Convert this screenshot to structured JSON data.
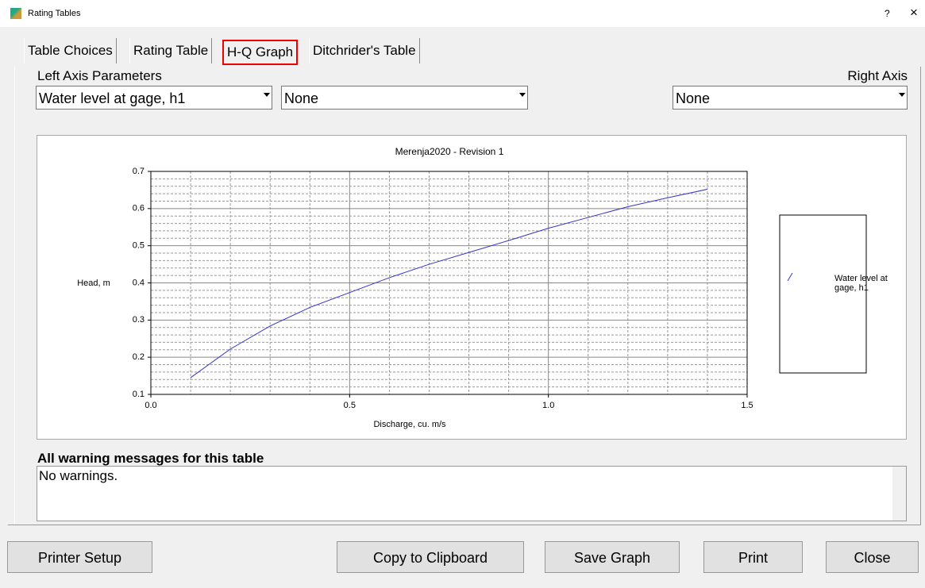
{
  "window": {
    "title": "Rating Tables",
    "help": "?",
    "close": "×"
  },
  "tabs": [
    "Table Choices",
    "Rating Table",
    "H-Q Graph",
    "Ditchrider's Table"
  ],
  "left_axis_label": "Left Axis Parameters",
  "right_axis_label": "Right Axis",
  "dropdowns": [
    "Water level at gage, h1",
    "None",
    "None"
  ],
  "chart_data": {
    "type": "line",
    "title": "Merenja2020 - Revision 1",
    "xlabel": "Discharge, cu. m/s",
    "ylabel": "Head, m",
    "x": [
      0.1,
      0.2,
      0.3,
      0.4,
      0.5,
      0.6,
      0.7,
      0.8,
      0.9,
      1.0,
      1.1,
      1.2,
      1.3,
      1.4
    ],
    "series": [
      {
        "name": "Water level at gage, h1",
        "color": "#3333cc",
        "values": [
          0.145,
          0.222,
          0.284,
          0.334,
          0.374,
          0.414,
          0.45,
          0.482,
          0.514,
          0.547,
          0.576,
          0.605,
          0.629,
          0.652
        ]
      }
    ],
    "xlim": [
      0,
      1.5
    ],
    "ylim": [
      0.1,
      0.7
    ],
    "xticks": [
      {
        "value": 0,
        "label": "0.0"
      },
      0.5,
      {
        "value": 1,
        "label": "1.0"
      },
      1.5
    ],
    "yticks": [
      0.1,
      0.2,
      0.3,
      0.4,
      0.5,
      0.6,
      0.7
    ],
    "grid": true,
    "minor_grid": true,
    "legend": "right"
  },
  "warnings": {
    "title": "All warning messages for this table",
    "text": "No warnings."
  },
  "buttons": [
    "Printer Setup",
    "Copy to Clipboard",
    "Save Graph",
    "Print",
    "Close"
  ]
}
